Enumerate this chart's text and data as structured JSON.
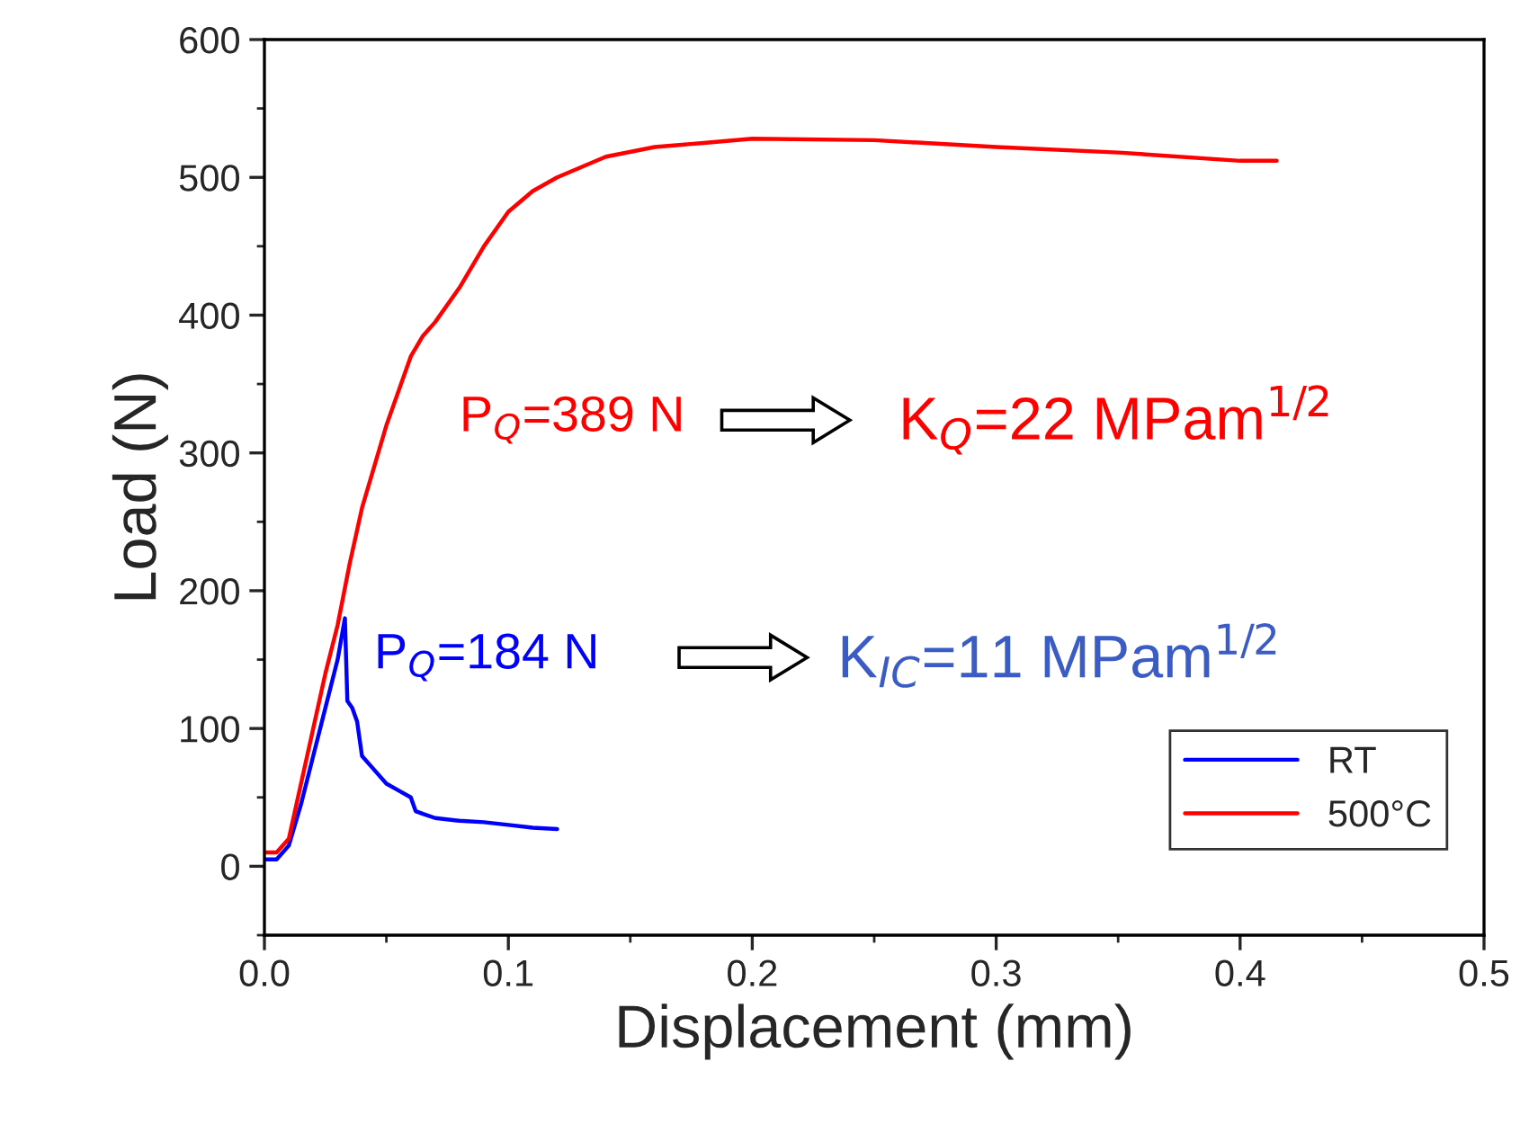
{
  "chart_data": {
    "type": "line",
    "xlabel": "Displacement (mm)",
    "ylabel": "Load (N)",
    "xlim": [
      0,
      0.5
    ],
    "ylim": [
      -50,
      600
    ],
    "xticks": [
      {
        "value": 0,
        "label": "0.0"
      },
      0.1,
      0.2,
      0.3,
      0.4,
      0.5
    ],
    "yticks": [
      0,
      100,
      200,
      300,
      400,
      500,
      600
    ],
    "grid": false,
    "legend": "bottom right",
    "marker": "none",
    "line_style": "solid",
    "series": [
      {
        "name": "RT",
        "color": "#0000ff",
        "x": [
          0.0,
          0.005,
          0.01,
          0.015,
          0.02,
          0.025,
          0.03,
          0.033,
          0.034,
          0.036,
          0.038,
          0.04,
          0.045,
          0.05,
          0.055,
          0.06,
          0.062,
          0.065,
          0.07,
          0.08,
          0.09,
          0.1,
          0.11,
          0.12
        ],
        "values": [
          5,
          5,
          15,
          45,
          80,
          115,
          150,
          180,
          120,
          115,
          105,
          80,
          70,
          60,
          55,
          50,
          40,
          38,
          35,
          33,
          32,
          30,
          28,
          27
        ]
      },
      {
        "name": "500°C",
        "color": "#ff0000",
        "x": [
          0.0,
          0.005,
          0.01,
          0.015,
          0.02,
          0.025,
          0.03,
          0.035,
          0.04,
          0.05,
          0.06,
          0.065,
          0.07,
          0.08,
          0.09,
          0.1,
          0.11,
          0.12,
          0.14,
          0.16,
          0.18,
          0.2,
          0.25,
          0.3,
          0.35,
          0.4,
          0.415
        ],
        "values": [
          10,
          10,
          20,
          60,
          100,
          140,
          175,
          220,
          260,
          320,
          370,
          385,
          395,
          420,
          450,
          475,
          490,
          500,
          515,
          522,
          525,
          528,
          527,
          522,
          518,
          512,
          512
        ]
      }
    ],
    "annotations": [
      "P$_{Q}$=389 N",
      "K$_{Q}$=22 MPam$^{1/2}$",
      "P$_{Q}$=184 N",
      "K$_{IC}$=11 MPam$^{1/2}$"
    ]
  }
}
